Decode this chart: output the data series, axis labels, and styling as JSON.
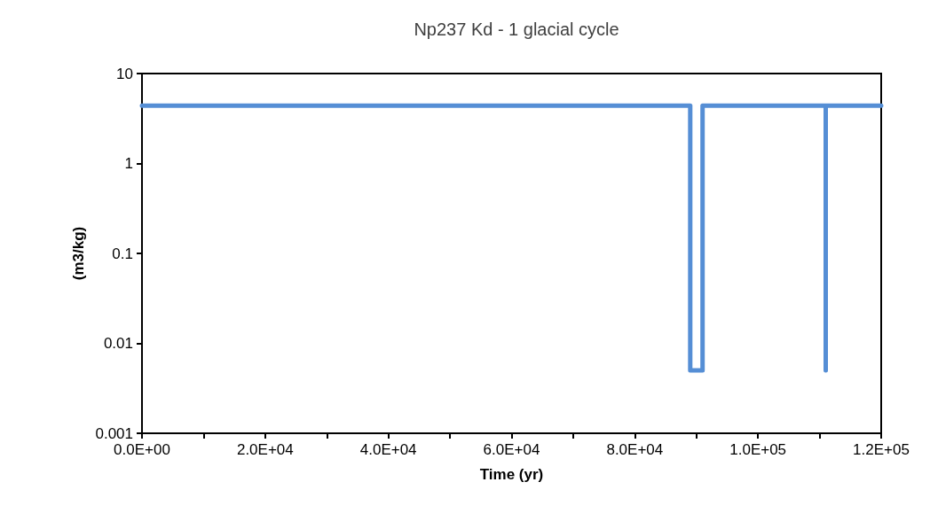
{
  "chart_data": {
    "type": "line",
    "title": "Np237 Kd - 1 glacial cycle",
    "xlabel": "Time (yr)",
    "ylabel": "(m3/kg)",
    "x": [
      0,
      89000,
      89000,
      91000,
      91000,
      111000,
      111000,
      111000,
      120000
    ],
    "series": [
      {
        "color": "#558ed5",
        "values": [
          4.4,
          4.4,
          0.005,
          0.005,
          4.4,
          4.4,
          0.005,
          4.4,
          4.4
        ]
      }
    ],
    "log": "y",
    "grid": false,
    "marker": "none",
    "line_style": "solid",
    "xlim": [
      0,
      120000
    ],
    "xticks": [
      {
        "value": 0,
        "label": "0.0E+00"
      },
      {
        "value": 10000,
        "label": null
      },
      {
        "value": 20000,
        "label": "2.0E+04"
      },
      {
        "value": 30000,
        "label": null
      },
      {
        "value": 40000,
        "label": "4.0E+04"
      },
      {
        "value": 50000,
        "label": null
      },
      {
        "value": 60000,
        "label": "6.0E+04"
      },
      {
        "value": 70000,
        "label": null
      },
      {
        "value": 80000,
        "label": "8.0E+04"
      },
      {
        "value": 90000,
        "label": null
      },
      {
        "value": 100000,
        "label": "1.0E+05"
      },
      {
        "value": 110000,
        "label": null
      },
      {
        "value": 120000,
        "label": "1.2E+05"
      }
    ],
    "ylim": [
      0.001,
      10
    ],
    "yticks": [
      0.001,
      0.01,
      0.1,
      1,
      10
    ]
  }
}
